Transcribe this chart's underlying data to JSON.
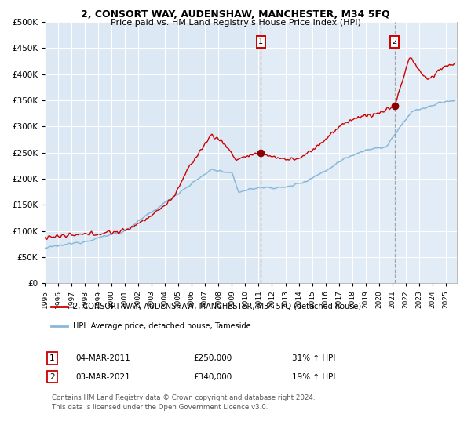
{
  "title": "2, CONSORT WAY, AUDENSHAW, MANCHESTER, M34 5FQ",
  "subtitle": "Price paid vs. HM Land Registry's House Price Index (HPI)",
  "legend_label_red": "2, CONSORT WAY, AUDENSHAW, MANCHESTER, M34 5FQ (detached house)",
  "legend_label_blue": "HPI: Average price, detached house, Tameside",
  "annotation1_date": "04-MAR-2011",
  "annotation1_price": "£250,000",
  "annotation1_hpi": "31% ↑ HPI",
  "annotation2_date": "03-MAR-2021",
  "annotation2_price": "£340,000",
  "annotation2_hpi": "19% ↑ HPI",
  "footnote1": "Contains HM Land Registry data © Crown copyright and database right 2024.",
  "footnote2": "This data is licensed under the Open Government Licence v3.0.",
  "plot_bg_color": "#dce9f5",
  "red_color": "#cc0000",
  "blue_color": "#89b8d8",
  "ylim": [
    0,
    500000
  ],
  "yticks": [
    0,
    50000,
    100000,
    150000,
    200000,
    250000,
    300000,
    350000,
    400000,
    450000,
    500000
  ],
  "xlim_start": 1995.0,
  "xlim_end": 2025.83,
  "sale1_x": 2011.17,
  "sale1_y": 250000,
  "sale2_x": 2021.17,
  "sale2_y": 340000
}
